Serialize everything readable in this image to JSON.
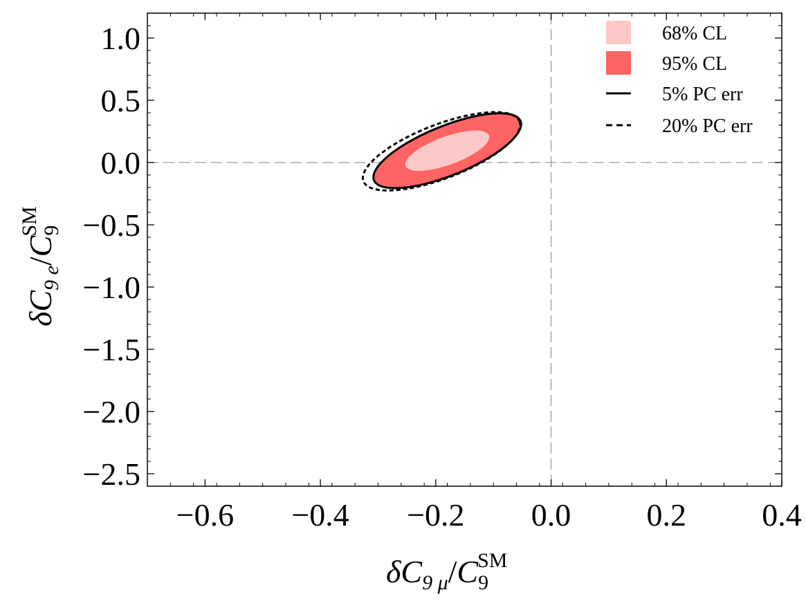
{
  "chart_data": {
    "type": "contour",
    "xlabel": {
      "delta": "δ",
      "symbol": "C",
      "sub": "9 μ",
      "slash": "/",
      "den": "C",
      "den_sub": "9",
      "den_sup": "SM"
    },
    "ylabel": {
      "delta": "δ",
      "symbol": "C",
      "sub": "9 e",
      "slash": "/",
      "den": "C",
      "den_sub": "9",
      "den_sup": "SM"
    },
    "xlim": [
      -0.7,
      0.4
    ],
    "ylim": [
      -2.6,
      1.2
    ],
    "x_ticks": [
      {
        "value": -0.6,
        "label": "−0.6"
      },
      {
        "value": -0.4,
        "label": "−0.4"
      },
      {
        "value": -0.2,
        "label": "−0.2"
      },
      {
        "value": 0.0,
        "label": "0.0"
      },
      {
        "value": 0.2,
        "label": "0.2"
      },
      {
        "value": 0.4,
        "label": "0.4"
      }
    ],
    "y_ticks": [
      {
        "value": 1.0,
        "label": "1.0"
      },
      {
        "value": 0.5,
        "label": "0.5"
      },
      {
        "value": 0.0,
        "label": "0.0"
      },
      {
        "value": -0.5,
        "label": "−0.5"
      },
      {
        "value": -1.0,
        "label": "−1.0"
      },
      {
        "value": -1.5,
        "label": "−1.5"
      },
      {
        "value": -2.0,
        "label": "−2.0"
      },
      {
        "value": -2.5,
        "label": "−2.5"
      }
    ],
    "reference_lines": {
      "x": 0.0,
      "y": 0.0,
      "style": "dashed",
      "color": "#9a9a9a"
    },
    "grid": false,
    "legend_position": "top-right",
    "legend": [
      {
        "key": "cl68",
        "label": "68% CL",
        "kind": "fill",
        "color": "#ffc8c8"
      },
      {
        "key": "cl95",
        "label": "95% CL",
        "kind": "fill",
        "color": "#ff6464"
      },
      {
        "key": "pc5",
        "label": "5% PC err",
        "kind": "solid-line",
        "color": "#000000"
      },
      {
        "key": "pc20",
        "label": "20% PC err",
        "kind": "dashed-line",
        "color": "#000000"
      }
    ],
    "regions": [
      {
        "key": "cl95",
        "center": [
          -0.18,
          0.095
        ],
        "half_axes": [
          0.136,
          0.118
        ],
        "tilt_deg": 22,
        "fill": "#ff6464"
      },
      {
        "key": "cl68",
        "center": [
          -0.18,
          0.095
        ],
        "half_axes": [
          0.077,
          0.068
        ],
        "tilt_deg": 20,
        "fill": "#ffc8c8"
      }
    ],
    "contours": [
      {
        "key": "pc5",
        "center": [
          -0.18,
          0.095
        ],
        "half_axes": [
          0.137,
          0.119
        ],
        "tilt_deg": 22,
        "style": "solid"
      },
      {
        "key": "pc20",
        "center": [
          -0.19,
          0.09
        ],
        "half_axes": [
          0.145,
          0.13
        ],
        "tilt_deg": 21,
        "style": "dashed"
      }
    ]
  }
}
